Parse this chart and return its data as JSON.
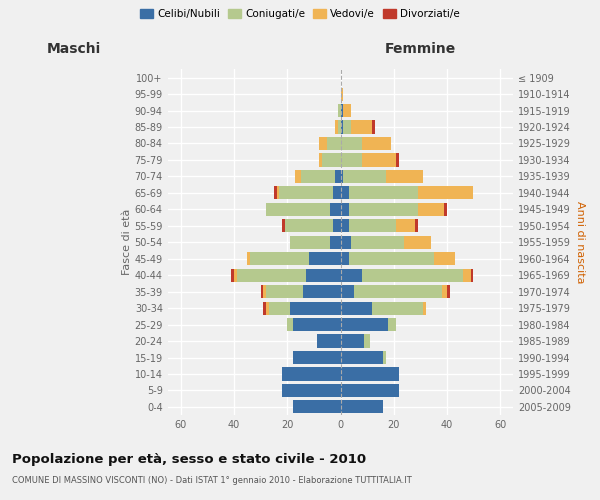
{
  "age_groups": [
    "0-4",
    "5-9",
    "10-14",
    "15-19",
    "20-24",
    "25-29",
    "30-34",
    "35-39",
    "40-44",
    "45-49",
    "50-54",
    "55-59",
    "60-64",
    "65-69",
    "70-74",
    "75-79",
    "80-84",
    "85-89",
    "90-94",
    "95-99",
    "100+"
  ],
  "birth_years": [
    "2005-2009",
    "2000-2004",
    "1995-1999",
    "1990-1994",
    "1985-1989",
    "1980-1984",
    "1975-1979",
    "1970-1974",
    "1965-1969",
    "1960-1964",
    "1955-1959",
    "1950-1954",
    "1945-1949",
    "1940-1944",
    "1935-1939",
    "1930-1934",
    "1925-1929",
    "1920-1924",
    "1915-1919",
    "1910-1914",
    "≤ 1909"
  ],
  "maschi": {
    "celibi": [
      18,
      22,
      22,
      18,
      9,
      18,
      19,
      14,
      13,
      12,
      4,
      3,
      4,
      3,
      2,
      0,
      0,
      0,
      0,
      0,
      0
    ],
    "coniugati": [
      0,
      0,
      0,
      0,
      0,
      2,
      8,
      14,
      26,
      22,
      15,
      18,
      24,
      20,
      13,
      7,
      5,
      1,
      1,
      0,
      0
    ],
    "vedovi": [
      0,
      0,
      0,
      0,
      0,
      0,
      1,
      1,
      1,
      1,
      0,
      0,
      0,
      1,
      2,
      1,
      3,
      1,
      0,
      0,
      0
    ],
    "divorziati": [
      0,
      0,
      0,
      0,
      0,
      0,
      1,
      1,
      1,
      0,
      0,
      1,
      0,
      1,
      0,
      0,
      0,
      0,
      0,
      0,
      0
    ]
  },
  "femmine": {
    "nubili": [
      16,
      22,
      22,
      16,
      9,
      18,
      12,
      5,
      8,
      3,
      4,
      3,
      3,
      3,
      1,
      0,
      0,
      1,
      1,
      0,
      0
    ],
    "coniugate": [
      0,
      0,
      0,
      1,
      2,
      3,
      19,
      33,
      38,
      32,
      20,
      18,
      26,
      26,
      16,
      8,
      8,
      3,
      0,
      0,
      0
    ],
    "vedove": [
      0,
      0,
      0,
      0,
      0,
      0,
      1,
      2,
      3,
      8,
      10,
      7,
      10,
      21,
      14,
      13,
      11,
      8,
      3,
      1,
      0
    ],
    "divorziate": [
      0,
      0,
      0,
      0,
      0,
      0,
      0,
      1,
      1,
      0,
      0,
      1,
      1,
      0,
      0,
      1,
      0,
      1,
      0,
      0,
      0
    ]
  },
  "colors": {
    "celibi": "#3a6ea5",
    "coniugati": "#b5c98e",
    "vedovi": "#f0b454",
    "divorziati": "#c0392b"
  },
  "title": "Popolazione per età, sesso e stato civile - 2010",
  "subtitle": "COMUNE DI MASSINO VISCONTI (NO) - Dati ISTAT 1° gennaio 2010 - Elaborazione TUTTITALIA.IT",
  "xlabel_left": "Maschi",
  "xlabel_right": "Femmine",
  "ylabel_left": "Fasce di età",
  "ylabel_right": "Anni di nascita",
  "xlim": 65,
  "bg_color": "#f0f0f0",
  "grid_color": "#ffffff",
  "legend_labels": [
    "Celibi/Nubili",
    "Coniugati/e",
    "Vedovi/e",
    "Divorziati/e"
  ]
}
